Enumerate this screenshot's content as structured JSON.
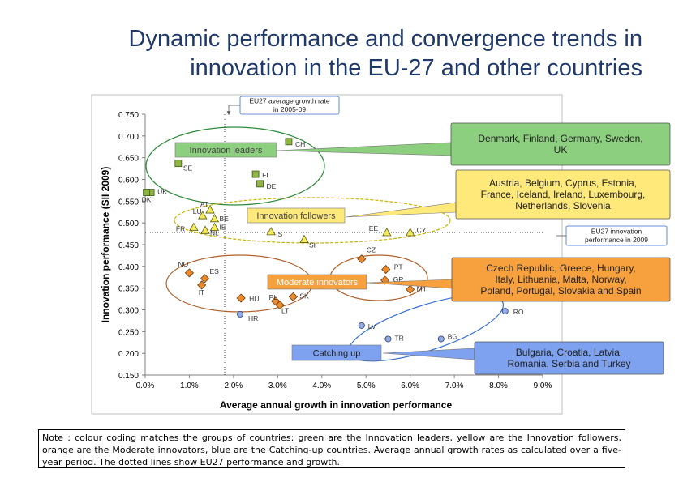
{
  "title_line1": "Dynamic performance and convergence trends in",
  "title_line2": "innovation in the EU-27 and other countries",
  "note": "Note : colour coding matches the groups of countries: green are the Innovation leaders, yellow are the Innovation followers, orange are the Moderate innovators, blue are the Catching-up countries. Average annual growth rates as calculated over a five-year period. The dotted lines show EU27 performance and growth.",
  "colors": {
    "leaders": "#8db53f",
    "followers": "#f2ea5c",
    "moderate": "#e88a2d",
    "catching": "#8fa8de",
    "leaders_box": "#8ccf7e",
    "followers_box": "#ffe97a",
    "moderate_box": "#f7a13e",
    "catching_box": "#7ea2f0"
  },
  "callouts": {
    "eu27_growth": "EU27 average growth rate in 2005-09",
    "eu27_performance": "EU27 innovation performance in 2009",
    "leaders_list": "Denmark, Finland, Germany, Sweden, UK",
    "followers_list": "Austria, Belgium, Cyprus, Estonia, France, Iceland, Ireland, Luxembourg, Netherlands, Slovenia",
    "moderate_list": "Czech Republic, Greece, Hungary, Italy, Lithuania, Malta, Norway, Poland, Portugal, Slovakia and Spain",
    "catching_list": "Bulgaria, Croatia, Latvia, Romania, Serbia and Turkey"
  },
  "chart_data": {
    "type": "scatter",
    "xlabel": "Average annual growth in innovation performance",
    "ylabel": "Innovation performance (SII 2009)",
    "xlim": [
      0.0,
      9.0
    ],
    "ylim": [
      0.15,
      0.75
    ],
    "xticks": [
      "0.0%",
      "1.0%",
      "2.0%",
      "3.0%",
      "4.0%",
      "5.0%",
      "6.0%",
      "7.0%",
      "8.0%",
      "9.0%"
    ],
    "yticks": [
      "0.150",
      "0.200",
      "0.250",
      "0.300",
      "0.350",
      "0.400",
      "0.450",
      "0.500",
      "0.550",
      "0.600",
      "0.650",
      "0.700",
      "0.750"
    ],
    "group_labels": {
      "leaders": "Innovation leaders",
      "followers": "Innovation followers",
      "moderate": "Moderate innovators",
      "catching": "Catching up"
    },
    "eu27": {
      "growth": 1.8,
      "performance": 0.478
    },
    "series": [
      {
        "group": "leaders",
        "marker": "square",
        "points": [
          {
            "label": "CH",
            "x": 3.25,
            "y": 0.687
          },
          {
            "label": "SE",
            "x": 0.75,
            "y": 0.637
          },
          {
            "label": "FI",
            "x": 2.5,
            "y": 0.612
          },
          {
            "label": "DE",
            "x": 2.6,
            "y": 0.59
          },
          {
            "label": "UK",
            "x": 0.13,
            "y": 0.57
          },
          {
            "label": "DK",
            "x": 0.03,
            "y": 0.57
          }
        ]
      },
      {
        "group": "followers",
        "marker": "triangle",
        "points": [
          {
            "label": "AT",
            "x": 1.47,
            "y": 0.53
          },
          {
            "label": "LU",
            "x": 1.3,
            "y": 0.517
          },
          {
            "label": "BE",
            "x": 1.57,
            "y": 0.51
          },
          {
            "label": "IE",
            "x": 1.57,
            "y": 0.49
          },
          {
            "label": "FR",
            "x": 1.1,
            "y": 0.49
          },
          {
            "label": "NL",
            "x": 1.36,
            "y": 0.483
          },
          {
            "label": "IS",
            "x": 2.85,
            "y": 0.48
          },
          {
            "label": "EE",
            "x": 5.47,
            "y": 0.478
          },
          {
            "label": "CY",
            "x": 6.0,
            "y": 0.478
          },
          {
            "label": "SI",
            "x": 3.6,
            "y": 0.462
          }
        ]
      },
      {
        "group": "moderate",
        "marker": "diamond",
        "points": [
          {
            "label": "CZ",
            "x": 4.9,
            "y": 0.417
          },
          {
            "label": "PT",
            "x": 5.45,
            "y": 0.393
          },
          {
            "label": "NO",
            "x": 1.0,
            "y": 0.385
          },
          {
            "label": "ES",
            "x": 1.35,
            "y": 0.372
          },
          {
            "label": "IT",
            "x": 1.28,
            "y": 0.357
          },
          {
            "label": "GR",
            "x": 5.43,
            "y": 0.368
          },
          {
            "label": "MT",
            "x": 6.0,
            "y": 0.347
          },
          {
            "label": "PL",
            "x": 2.95,
            "y": 0.32
          },
          {
            "label": "SK",
            "x": 3.35,
            "y": 0.33
          },
          {
            "label": "LT",
            "x": 3.05,
            "y": 0.311
          },
          {
            "label": "HU",
            "x": 2.17,
            "y": 0.327
          }
        ]
      },
      {
        "group": "catching",
        "marker": "circle",
        "points": [
          {
            "label": "HR",
            "x": 2.15,
            "y": 0.29
          },
          {
            "label": "RO",
            "x": 8.15,
            "y": 0.297
          },
          {
            "label": "LV",
            "x": 4.9,
            "y": 0.264
          },
          {
            "label": "TR",
            "x": 5.5,
            "y": 0.233
          },
          {
            "label": "BG",
            "x": 6.7,
            "y": 0.233
          }
        ]
      }
    ]
  }
}
